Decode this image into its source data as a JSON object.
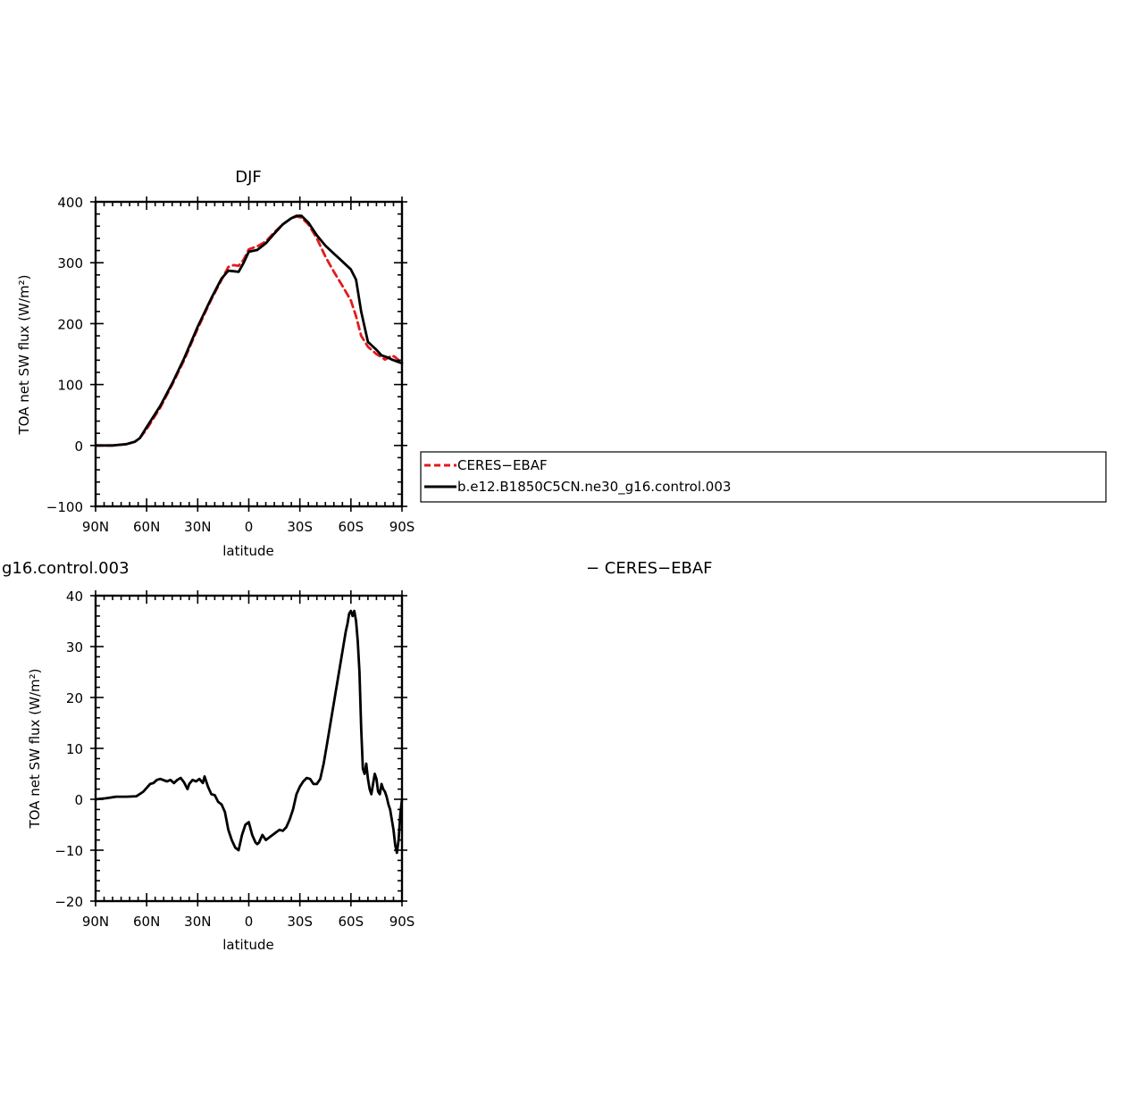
{
  "chart_data": [
    {
      "type": "line",
      "title": "DJF",
      "xlabel": "latitude",
      "ylabel": "TOA net SW flux (W/m²)",
      "xlim": [
        90,
        -90
      ],
      "ylim": [
        -100,
        400
      ],
      "xticks": [
        90,
        60,
        30,
        0,
        -30,
        -60,
        -90
      ],
      "xtick_labels": [
        "90N",
        "60N",
        "30N",
        "0",
        "30S",
        "60S",
        "90S"
      ],
      "yticks": [
        -100,
        0,
        100,
        200,
        300,
        400
      ],
      "ytick_labels": [
        "−100",
        "0",
        "100",
        "200",
        "300",
        "400"
      ],
      "grid": false,
      "legend_position": "right",
      "series": [
        {
          "name": "CERES−EBAF",
          "color": "#e41a1c",
          "dash": "dashed",
          "x": [
            90,
            80,
            72,
            67,
            64,
            60,
            52,
            45,
            38,
            30,
            22,
            16,
            12,
            9,
            6,
            3,
            0,
            -5,
            -10,
            -15,
            -20,
            -25,
            -28,
            -31,
            -35,
            -40,
            -45,
            -50,
            -55,
            -60,
            -63,
            -66,
            -70,
            -75,
            -78,
            -80,
            -82,
            -84,
            -86,
            -88,
            -90
          ],
          "y": [
            0,
            0,
            2,
            6,
            12,
            27,
            62,
            100,
            140,
            192,
            240,
            272,
            293,
            296,
            295,
            305,
            322,
            327,
            335,
            350,
            363,
            373,
            376,
            374,
            363,
            340,
            310,
            285,
            262,
            238,
            212,
            180,
            162,
            150,
            145,
            141,
            144,
            148,
            145,
            140,
            137
          ]
        },
        {
          "name": "b.e12.B1850C5CN.ne30_g16.control.003",
          "color": "#000000",
          "dash": "solid",
          "x": [
            90,
            80,
            72,
            67,
            64,
            60,
            52,
            45,
            38,
            30,
            22,
            16,
            12,
            9,
            6,
            3,
            0,
            -5,
            -10,
            -15,
            -20,
            -25,
            -28,
            -31,
            -35,
            -40,
            -45,
            -50,
            -55,
            -60,
            -63,
            -66,
            -70,
            -75,
            -78,
            -80,
            -82,
            -84,
            -86,
            -88,
            -90
          ],
          "y": [
            0,
            0,
            2,
            6,
            12,
            30,
            65,
            102,
            143,
            195,
            242,
            274,
            287,
            286,
            285,
            300,
            318,
            321,
            332,
            348,
            363,
            373,
            377,
            377,
            366,
            345,
            328,
            315,
            302,
            289,
            272,
            220,
            170,
            157,
            148,
            146,
            144,
            141,
            139,
            137,
            135
          ]
        }
      ]
    },
    {
      "type": "line",
      "title": "g16.control.003",
      "title_right": "− CERES−EBAF",
      "xlabel": "latitude",
      "ylabel": "TOA net SW flux (W/m²)",
      "xlim": [
        90,
        -90
      ],
      "ylim": [
        -20,
        40
      ],
      "xticks": [
        90,
        60,
        30,
        0,
        -30,
        -60,
        -90
      ],
      "xtick_labels": [
        "90N",
        "60N",
        "30N",
        "0",
        "30S",
        "60S",
        "90S"
      ],
      "yticks": [
        -20,
        -10,
        0,
        10,
        20,
        30,
        40
      ],
      "ytick_labels": [
        "−20",
        "−10",
        "0",
        "10",
        "20",
        "30",
        "40"
      ],
      "grid": false,
      "series": [
        {
          "color": "#000000",
          "dash": "solid",
          "x": [
            90,
            84,
            78,
            72,
            66,
            62,
            58,
            56,
            54,
            52,
            48,
            46,
            44,
            42,
            40,
            38,
            36,
            35,
            33,
            31,
            29,
            27,
            26,
            24,
            22,
            20,
            18,
            16,
            14,
            12,
            10,
            8,
            6,
            4,
            2,
            0,
            -2,
            -4,
            -5,
            -6,
            -8,
            -10,
            -12,
            -14,
            -16,
            -18,
            -20,
            -22,
            -24,
            -26,
            -28,
            -30,
            -32,
            -34,
            -36,
            -38,
            -40,
            -42,
            -44,
            -46,
            -48,
            -50,
            -52,
            -54,
            -56,
            -57,
            -58,
            -59,
            -60,
            -61,
            -62,
            -63,
            -64,
            -65,
            -66,
            -67,
            -68,
            -69,
            -70,
            -71,
            -72,
            -73,
            -74,
            -75,
            -76,
            -77,
            -78,
            -79,
            -80,
            -81,
            -82,
            -83,
            -84,
            -85,
            -86,
            -87,
            -88,
            -89,
            -90
          ],
          "y": [
            0,
            0.2,
            0.5,
            0.5,
            0.6,
            1.5,
            3,
            3.2,
            3.8,
            4,
            3.5,
            3.8,
            3.2,
            3.8,
            4.2,
            3.3,
            2,
            3,
            3.8,
            3.5,
            4,
            3.2,
            4.5,
            2.5,
            1,
            0.8,
            -0.5,
            -1,
            -2.5,
            -6,
            -8,
            -9.5,
            -10,
            -7,
            -5,
            -4.5,
            -7,
            -8.5,
            -8.8,
            -8.5,
            -7,
            -8,
            -7.5,
            -7,
            -6.5,
            -6,
            -6.2,
            -5.5,
            -4,
            -2,
            1,
            2.5,
            3.5,
            4.2,
            4,
            3,
            3,
            4,
            7,
            11,
            15,
            19,
            23,
            27,
            31,
            33,
            34.5,
            36.5,
            37,
            36,
            37,
            35,
            31,
            25,
            14,
            6,
            5,
            7,
            4,
            2,
            1,
            3,
            5,
            4,
            1.5,
            1,
            3,
            2,
            1.5,
            0.5,
            -1,
            -2,
            -4,
            -6,
            -9,
            -10.5,
            -8,
            -3,
            0
          ]
        }
      ]
    }
  ],
  "legend": {
    "entries": [
      {
        "label": "CERES−EBAF",
        "color": "#e41a1c",
        "dash": "dashed"
      },
      {
        "label": "b.e12.B1850C5CN.ne30_g16.control.003",
        "color": "#000000",
        "dash": "solid"
      }
    ]
  }
}
